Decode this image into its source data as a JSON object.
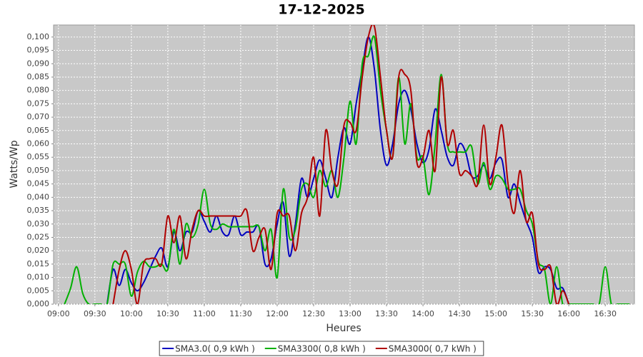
{
  "chart_data": {
    "type": "line",
    "title": "17-12-2025",
    "x_label": "Heures",
    "y_label": "Watts/Wp",
    "x": [
      540,
      545,
      550,
      555,
      560,
      565,
      570,
      575,
      580,
      585,
      590,
      595,
      600,
      605,
      610,
      615,
      620,
      625,
      630,
      635,
      640,
      645,
      650,
      655,
      660,
      665,
      670,
      675,
      680,
      685,
      690,
      695,
      700,
      705,
      710,
      715,
      720,
      725,
      730,
      735,
      740,
      745,
      750,
      755,
      760,
      765,
      770,
      775,
      780,
      785,
      790,
      795,
      800,
      805,
      810,
      815,
      820,
      825,
      830,
      835,
      840,
      845,
      850,
      855,
      860,
      865,
      870,
      875,
      880,
      885,
      890,
      895,
      900,
      905,
      910,
      915,
      920,
      925,
      930,
      935,
      940,
      945,
      950,
      955,
      960,
      965,
      970,
      975,
      980,
      985,
      990,
      995,
      1000,
      1005,
      1010
    ],
    "series": [
      {
        "name": "SMA3.0( 0,9 kWh )",
        "color": "#0000c0",
        "values": [
          null,
          null,
          null,
          null,
          null,
          null,
          null,
          null,
          0,
          0.013,
          0.007,
          0.013,
          0.008,
          0.005,
          0.008,
          0.013,
          0.018,
          0.021,
          0.014,
          0.027,
          0.02,
          0.027,
          0.027,
          0.035,
          0.031,
          0.027,
          0.033,
          0.027,
          0.026,
          0.033,
          0.026,
          0.027,
          0.027,
          0.029,
          0.015,
          0.017,
          0.03,
          0.038,
          0.018,
          0.03,
          0.047,
          0.04,
          0.047,
          0.054,
          0.047,
          0.04,
          0.055,
          0.066,
          0.06,
          0.075,
          0.088,
          0.1,
          0.088,
          0.065,
          0.052,
          0.06,
          0.075,
          0.08,
          0.073,
          0.06,
          0.053,
          0.058,
          0.073,
          0.065,
          0.055,
          0.052,
          0.06,
          0.057,
          0.048,
          0.048,
          0.052,
          0.047,
          0.053,
          0.054,
          0.04,
          0.045,
          0.038,
          0.031,
          0.025,
          0.012,
          0.014,
          0.013,
          0.006,
          0.006,
          0,
          null,
          null,
          null,
          null,
          null,
          null,
          null,
          null,
          null,
          null
        ]
      },
      {
        "name": "SMA3300( 0,8 kWh )",
        "color": "#00b000",
        "values": [
          null,
          0,
          0.006,
          0.014,
          0.004,
          0,
          0,
          0,
          0,
          0.015,
          0.015,
          0.015,
          0.003,
          0.012,
          0.016,
          0.014,
          0.014,
          0.015,
          0.013,
          0.028,
          0.015,
          0.03,
          0.025,
          0.03,
          0.043,
          0.03,
          0.028,
          0.03,
          0.029,
          0.029,
          0.029,
          0.029,
          0.029,
          0.029,
          0.02,
          0.028,
          0.01,
          0.043,
          0.025,
          0.028,
          0.043,
          0.045,
          0.04,
          0.05,
          0.044,
          0.05,
          0.04,
          0.055,
          0.076,
          0.06,
          0.09,
          0.093,
          0.1,
          0.08,
          0.065,
          0.055,
          0.085,
          0.06,
          0.075,
          0.055,
          0.055,
          0.041,
          0.06,
          0.086,
          0.06,
          0.057,
          0.057,
          0.057,
          0.059,
          0.045,
          0.053,
          0.043,
          0.048,
          0.047,
          0.043,
          0.043,
          0.043,
          0.035,
          0.03,
          0.016,
          0.013,
          0,
          0.014,
          0,
          0,
          0,
          0,
          0,
          0,
          0,
          0.014,
          0,
          0,
          0,
          0
        ]
      },
      {
        "name": "SMA3000( 0,7 kWh )",
        "color": "#b00000",
        "values": [
          null,
          null,
          null,
          null,
          null,
          null,
          null,
          null,
          null,
          0,
          0.013,
          0.02,
          0.013,
          0,
          0.015,
          0.017,
          0.017,
          0.015,
          0.033,
          0.023,
          0.033,
          0.017,
          0.028,
          0.035,
          0.033,
          0.033,
          0.033,
          0.033,
          0.033,
          0.033,
          0.033,
          0.035,
          0.02,
          0.025,
          0.028,
          0.013,
          0.034,
          0.033,
          0.033,
          0.02,
          0.034,
          0.04,
          0.055,
          0.033,
          0.065,
          0.05,
          0.045,
          0.067,
          0.068,
          0.065,
          0.085,
          0.1,
          0.104,
          0.085,
          0.065,
          0.055,
          0.085,
          0.086,
          0.08,
          0.053,
          0.055,
          0.065,
          0.05,
          0.085,
          0.06,
          0.065,
          0.049,
          0.05,
          0.048,
          0.045,
          0.067,
          0.045,
          0.055,
          0.067,
          0.045,
          0.034,
          0.05,
          0.031,
          0.034,
          0.015,
          0.013,
          0.014,
          0,
          0.005,
          0,
          null,
          null,
          null,
          null,
          null,
          null,
          null,
          null,
          null,
          null
        ]
      }
    ],
    "xlim": [
      536,
      1014
    ],
    "ylim": [
      0,
      0.1045
    ],
    "xticks": [
      {
        "value": 540,
        "label": "09:00"
      },
      {
        "value": 570,
        "label": "09:30"
      },
      {
        "value": 600,
        "label": "10:00"
      },
      {
        "value": 630,
        "label": "10:30"
      },
      {
        "value": 660,
        "label": "11:00"
      },
      {
        "value": 690,
        "label": "11:30"
      },
      {
        "value": 720,
        "label": "12:00"
      },
      {
        "value": 750,
        "label": "12:30"
      },
      {
        "value": 780,
        "label": "13:00"
      },
      {
        "value": 810,
        "label": "13:30"
      },
      {
        "value": 840,
        "label": "14:00"
      },
      {
        "value": 870,
        "label": "14:30"
      },
      {
        "value": 900,
        "label": "15:00"
      },
      {
        "value": 930,
        "label": "15:30"
      },
      {
        "value": 960,
        "label": "16:00"
      },
      {
        "value": 990,
        "label": "16:30"
      }
    ],
    "yticks": [
      {
        "value": 0,
        "label": "0,000"
      },
      {
        "value": 0.005,
        "label": "0,005"
      },
      {
        "value": 0.01,
        "label": "0,010"
      },
      {
        "value": 0.015,
        "label": "0,015"
      },
      {
        "value": 0.02,
        "label": "0,020"
      },
      {
        "value": 0.025,
        "label": "0,025"
      },
      {
        "value": 0.03,
        "label": "0,030"
      },
      {
        "value": 0.035,
        "label": "0,035"
      },
      {
        "value": 0.04,
        "label": "0,040"
      },
      {
        "value": 0.045,
        "label": "0,045"
      },
      {
        "value": 0.05,
        "label": "0,050"
      },
      {
        "value": 0.055,
        "label": "0,055"
      },
      {
        "value": 0.06,
        "label": "0,060"
      },
      {
        "value": 0.065,
        "label": "0,065"
      },
      {
        "value": 0.07,
        "label": "0,070"
      },
      {
        "value": 0.075,
        "label": "0,075"
      },
      {
        "value": 0.08,
        "label": "0,080"
      },
      {
        "value": 0.085,
        "label": "0,085"
      },
      {
        "value": 0.09,
        "label": "0,090"
      },
      {
        "value": 0.095,
        "label": "0,095"
      },
      {
        "value": 0.1,
        "label": "0,100"
      }
    ],
    "grid": true,
    "legend": "bottom"
  }
}
